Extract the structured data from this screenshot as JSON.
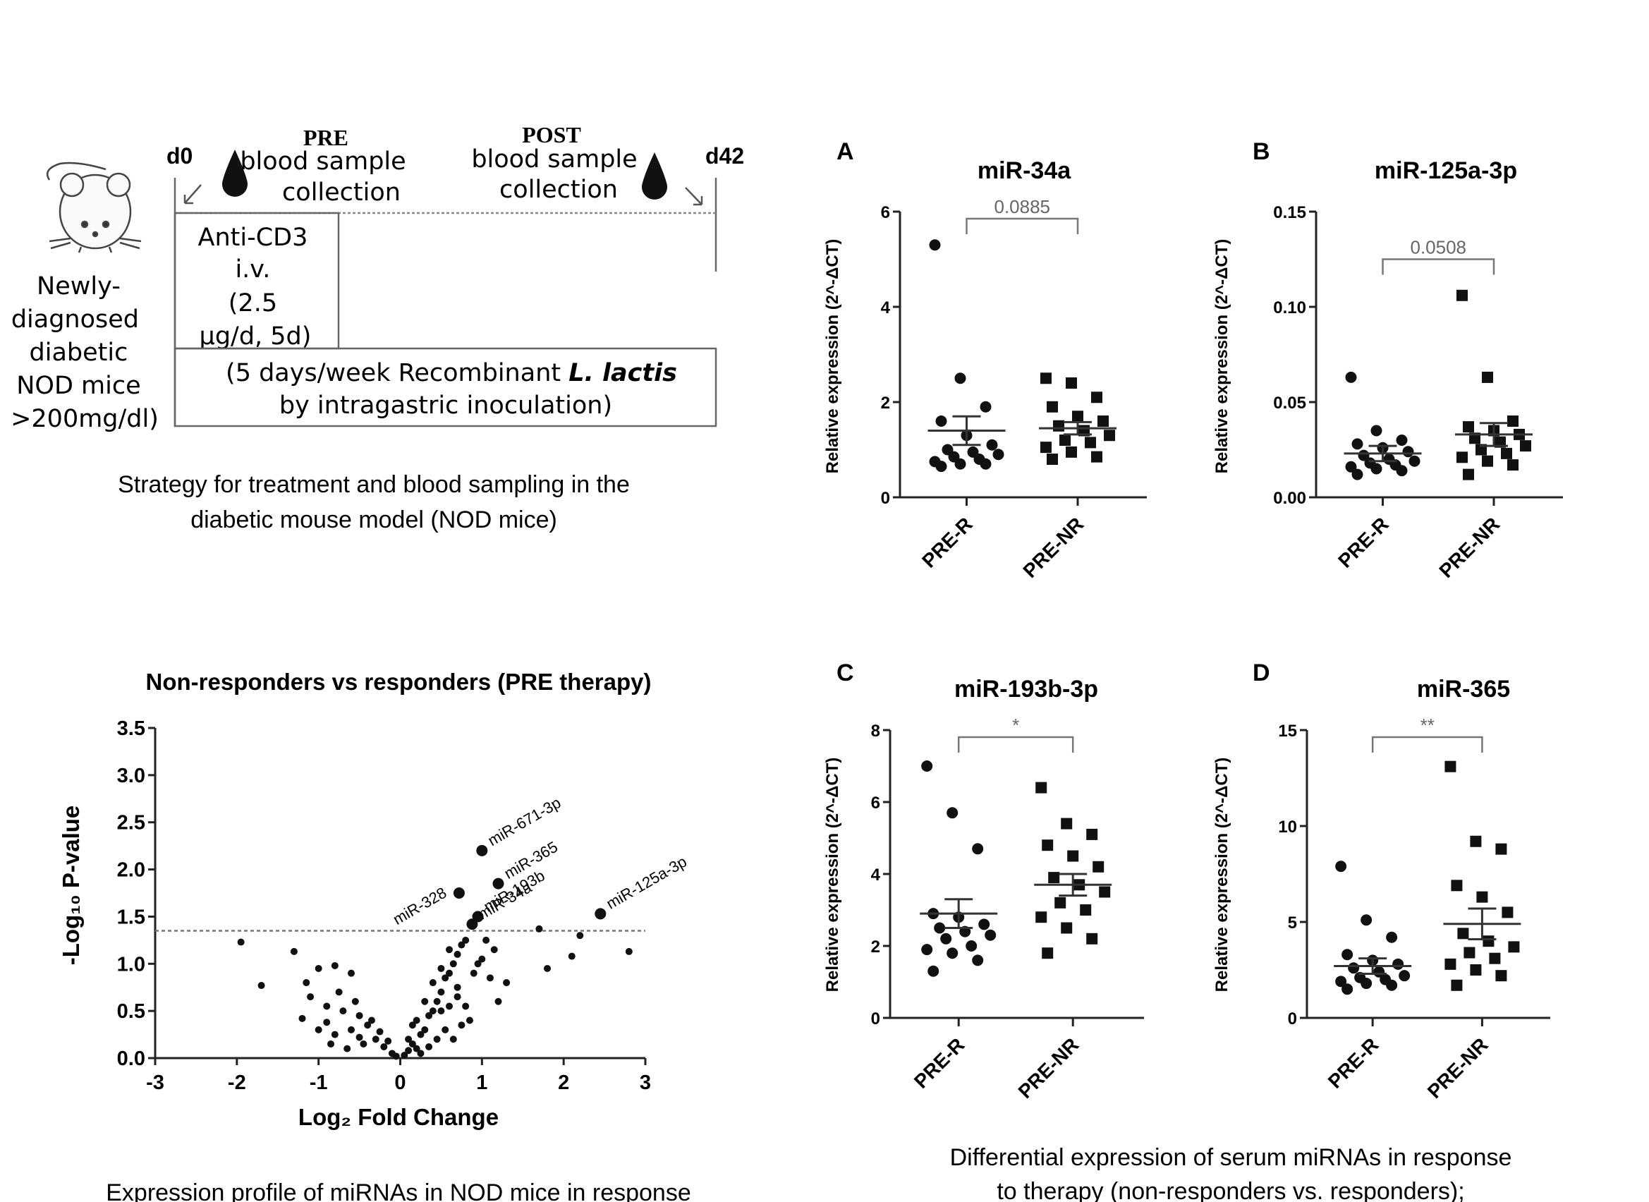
{
  "schematic": {
    "pre_label": "PRE",
    "pre_text_1": "blood sample",
    "pre_text_2": "collection",
    "post_label": "POST",
    "post_text_1": "blood sample",
    "post_text_2": "collection",
    "day_start": "d0",
    "day_end": "d42",
    "mouse_caption": [
      "Newly-",
      "diagnosed",
      "diabetic",
      "NOD mice",
      ">200mg/dl)"
    ],
    "anti_cd3": [
      "Anti-CD3",
      "i.v.",
      "(2.5",
      "μg/d, 5d)"
    ],
    "lactis_1_pre": "(5 days/week Recombinant ",
    "lactis_1_em": "L. lactis",
    "lactis_2": "by intragastric inoculation)",
    "caption_1": "Strategy for treatment and blood sampling in the",
    "caption_2": "diabetic mouse model (NOD mice)"
  },
  "volcano": {
    "title": "Non-responders vs responders (PRE therapy)",
    "xlabel": "Log₂ Fold Change",
    "ylabel": "-Log₁₀ P-value",
    "caption": "Expression profile of miRNAs in NOD mice in response"
  },
  "panels_caption": {
    "line_1": "Differential expression of serum miRNAs in response",
    "line_2": "to therapy (non-responders vs. responders);"
  },
  "chart_data": [
    {
      "type": "scatter",
      "title": "Non-responders vs responders (PRE therapy)",
      "xlabel": "Log₂ Fold Change",
      "ylabel": "-Log₁₀ P-value",
      "xlim": [
        -3,
        3
      ],
      "ylim": [
        0,
        3.5
      ],
      "xticks": [
        "-3",
        "-2",
        "-1",
        "0",
        "1",
        "2",
        "3"
      ],
      "yticks": [
        "0.0",
        "0.5",
        "1.0",
        "1.5",
        "2.0",
        "2.5",
        "3.0",
        "3.5"
      ],
      "threshold": 1.35,
      "labeled_points": [
        {
          "name": "miR-671-3p",
          "x": 1.0,
          "y": 2.2
        },
        {
          "name": "miR-365",
          "x": 1.2,
          "y": 1.85
        },
        {
          "name": "miR-328",
          "x": 0.72,
          "y": 1.75
        },
        {
          "name": "miR-193b",
          "x": 0.95,
          "y": 1.5
        },
        {
          "name": "miR-34a",
          "x": 0.88,
          "y": 1.42
        },
        {
          "name": "miR-125a-3p",
          "x": 2.45,
          "y": 1.53
        }
      ],
      "points": [
        [
          -1.95,
          1.23
        ],
        [
          -1.7,
          0.77
        ],
        [
          -1.3,
          1.13
        ],
        [
          -1.0,
          0.95
        ],
        [
          -0.8,
          0.98
        ],
        [
          -0.6,
          0.9
        ],
        [
          -1.1,
          0.65
        ],
        [
          -1.2,
          0.42
        ],
        [
          -0.9,
          0.55
        ],
        [
          -0.7,
          0.5
        ],
        [
          -0.5,
          0.45
        ],
        [
          -0.6,
          0.3
        ],
        [
          -0.4,
          0.35
        ],
        [
          -0.3,
          0.2
        ],
        [
          -0.2,
          0.12
        ],
        [
          -0.1,
          0.05
        ],
        [
          -0.05,
          0.02
        ],
        [
          -0.8,
          0.25
        ],
        [
          -1.0,
          0.3
        ],
        [
          -0.55,
          0.6
        ],
        [
          -0.35,
          0.4
        ],
        [
          -0.25,
          0.28
        ],
        [
          -0.15,
          0.18
        ],
        [
          -0.45,
          0.15
        ],
        [
          -0.65,
          0.1
        ],
        [
          -0.85,
          0.15
        ],
        [
          -0.9,
          0.38
        ],
        [
          -1.15,
          0.8
        ],
        [
          -0.75,
          0.7
        ],
        [
          -0.5,
          0.22
        ],
        [
          0.05,
          0.03
        ],
        [
          0.1,
          0.08
        ],
        [
          0.15,
          0.15
        ],
        [
          0.2,
          0.1
        ],
        [
          0.25,
          0.25
        ],
        [
          0.3,
          0.3
        ],
        [
          0.35,
          0.45
        ],
        [
          0.4,
          0.5
        ],
        [
          0.45,
          0.6
        ],
        [
          0.5,
          0.7
        ],
        [
          0.55,
          0.85
        ],
        [
          0.6,
          0.9
        ],
        [
          0.65,
          1.0
        ],
        [
          0.7,
          1.1
        ],
        [
          0.75,
          1.2
        ],
        [
          0.8,
          1.25
        ],
        [
          0.3,
          0.6
        ],
        [
          0.4,
          0.8
        ],
        [
          0.5,
          0.95
        ],
        [
          0.6,
          1.15
        ],
        [
          0.7,
          0.75
        ],
        [
          0.8,
          0.55
        ],
        [
          0.9,
          0.9
        ],
        [
          1.0,
          1.05
        ],
        [
          1.1,
          0.85
        ],
        [
          1.2,
          0.6
        ],
        [
          1.05,
          1.25
        ],
        [
          0.95,
          1.0
        ],
        [
          0.85,
          0.4
        ],
        [
          0.75,
          0.35
        ],
        [
          0.65,
          0.2
        ],
        [
          0.55,
          0.3
        ],
        [
          0.45,
          0.2
        ],
        [
          0.35,
          0.12
        ],
        [
          0.25,
          0.05
        ],
        [
          1.3,
          0.8
        ],
        [
          1.7,
          1.37
        ],
        [
          1.8,
          0.95
        ],
        [
          2.1,
          1.08
        ],
        [
          2.2,
          1.3
        ],
        [
          2.8,
          1.13
        ],
        [
          0.2,
          0.4
        ],
        [
          0.15,
          0.35
        ],
        [
          0.1,
          0.2
        ],
        [
          0.5,
          0.5
        ],
        [
          0.6,
          0.55
        ],
        [
          0.7,
          0.65
        ],
        [
          1.15,
          1.15
        ]
      ]
    },
    {
      "type": "scatter",
      "panel": "A",
      "title": "miR-34a",
      "ylabel": "Relative expression (2^-ΔCT)",
      "categories": [
        "PRE-R",
        "PRE-NR"
      ],
      "ylim": [
        0,
        6
      ],
      "yticks": [
        "0",
        "2",
        "4",
        "6"
      ],
      "pvalue": "0.0885",
      "series": [
        {
          "name": "PRE-R",
          "marker": "circle",
          "mean": 1.4,
          "sem": 0.3,
          "values": [
            5.3,
            2.5,
            1.9,
            1.6,
            1.3,
            1.1,
            1.0,
            0.95,
            0.9,
            0.85,
            0.8,
            0.75,
            0.7,
            0.7,
            0.65
          ]
        },
        {
          "name": "PRE-NR",
          "marker": "square",
          "mean": 1.45,
          "sem": 0.13,
          "values": [
            2.5,
            2.4,
            2.1,
            1.9,
            1.7,
            1.6,
            1.5,
            1.4,
            1.3,
            1.2,
            1.15,
            1.05,
            0.95,
            0.85,
            0.8
          ]
        }
      ]
    },
    {
      "type": "scatter",
      "panel": "B",
      "title": "miR-125a-3p",
      "ylabel": "Relative expression (2^-ΔCT)",
      "categories": [
        "PRE-R",
        "PRE-NR"
      ],
      "ylim": [
        0,
        0.15
      ],
      "yticks": [
        "0.00",
        "0.05",
        "0.10",
        "0.15"
      ],
      "pvalue": "0.0508",
      "series": [
        {
          "name": "PRE-R",
          "marker": "circle",
          "mean": 0.023,
          "sem": 0.004,
          "values": [
            0.063,
            0.035,
            0.03,
            0.028,
            0.026,
            0.024,
            0.022,
            0.02,
            0.019,
            0.018,
            0.017,
            0.016,
            0.015,
            0.014,
            0.012
          ]
        },
        {
          "name": "PRE-NR",
          "marker": "square",
          "mean": 0.033,
          "sem": 0.006,
          "values": [
            0.106,
            0.063,
            0.04,
            0.037,
            0.035,
            0.033,
            0.031,
            0.029,
            0.027,
            0.025,
            0.023,
            0.021,
            0.019,
            0.017,
            0.012
          ]
        }
      ]
    },
    {
      "type": "scatter",
      "panel": "C",
      "title": "miR-193b-3p",
      "ylabel": "Relative expression (2^-ΔCT)",
      "categories": [
        "PRE-R",
        "PRE-NR"
      ],
      "ylim": [
        0,
        8
      ],
      "yticks": [
        "0",
        "2",
        "4",
        "6",
        "8"
      ],
      "pvalue": "*",
      "series": [
        {
          "name": "PRE-R",
          "marker": "circle",
          "mean": 2.9,
          "sem": 0.4,
          "values": [
            7.0,
            5.7,
            4.7,
            2.9,
            2.8,
            2.6,
            2.5,
            2.4,
            2.3,
            2.2,
            2.0,
            1.9,
            1.8,
            1.6,
            1.3
          ]
        },
        {
          "name": "PRE-NR",
          "marker": "square",
          "mean": 3.7,
          "sem": 0.3,
          "values": [
            6.4,
            5.4,
            5.1,
            4.8,
            4.5,
            4.2,
            3.9,
            3.7,
            3.5,
            3.2,
            3.0,
            2.8,
            2.5,
            2.2,
            1.8
          ]
        }
      ]
    },
    {
      "type": "scatter",
      "panel": "D",
      "title": "miR-365",
      "ylabel": "Relative expression (2^-ΔCT)",
      "categories": [
        "PRE-R",
        "PRE-NR"
      ],
      "ylim": [
        0,
        15
      ],
      "yticks": [
        "0",
        "5",
        "10",
        "15"
      ],
      "pvalue": "**",
      "series": [
        {
          "name": "PRE-R",
          "marker": "circle",
          "mean": 2.7,
          "sem": 0.4,
          "values": [
            7.9,
            5.1,
            4.2,
            3.3,
            3.0,
            2.8,
            2.6,
            2.4,
            2.2,
            2.1,
            2.0,
            1.9,
            1.8,
            1.7,
            1.5
          ]
        },
        {
          "name": "PRE-NR",
          "marker": "square",
          "mean": 4.9,
          "sem": 0.8,
          "values": [
            13.1,
            9.2,
            8.8,
            6.9,
            6.3,
            5.5,
            4.4,
            4.0,
            3.7,
            3.4,
            3.1,
            2.8,
            2.5,
            2.2,
            1.7
          ]
        }
      ]
    }
  ]
}
